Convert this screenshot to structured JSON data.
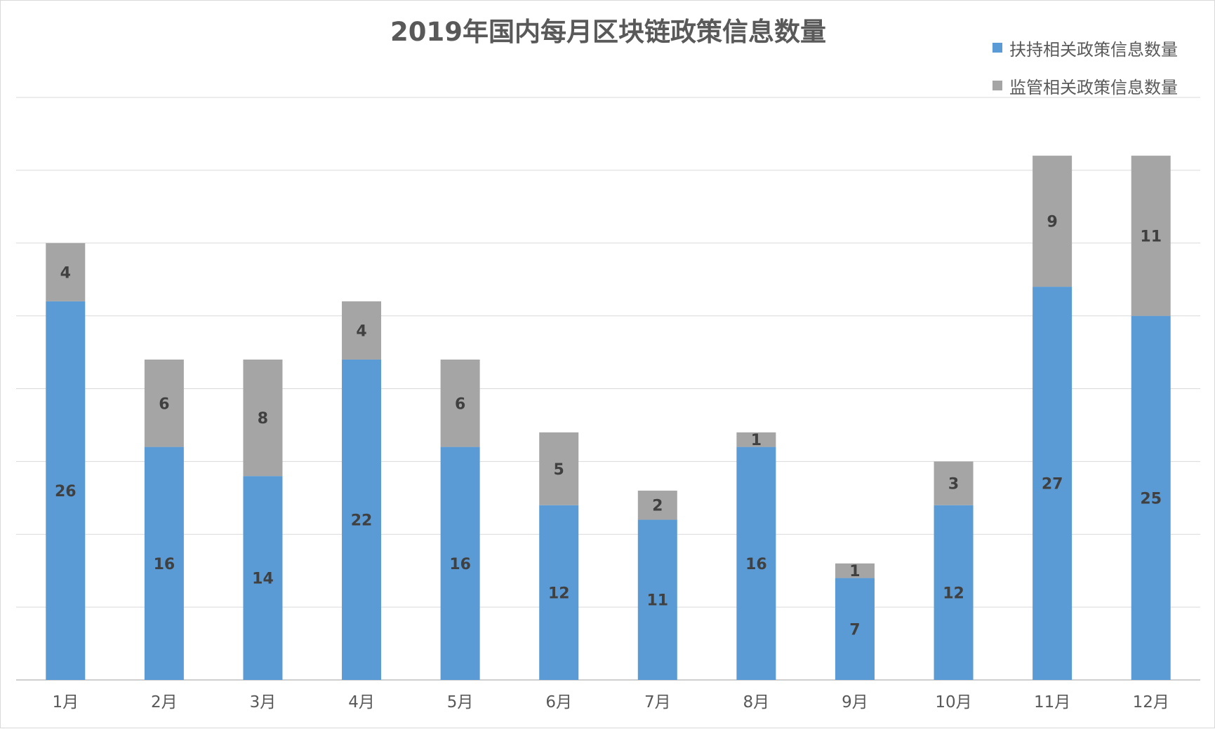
{
  "chart_data": {
    "type": "bar",
    "stacked": true,
    "title": "2019年国内每月区块链政策信息数量",
    "categories": [
      "1月",
      "2月",
      "3月",
      "4月",
      "5月",
      "6月",
      "7月",
      "8月",
      "9月",
      "10月",
      "11月",
      "12月"
    ],
    "series": [
      {
        "name": "扶持相关政策信息数量",
        "color": "#5b9bd5",
        "values": [
          26,
          16,
          14,
          22,
          16,
          12,
          11,
          16,
          7,
          12,
          27,
          25
        ]
      },
      {
        "name": "监管相关政策信息数量",
        "color": "#a5a5a5",
        "values": [
          4,
          6,
          8,
          4,
          6,
          5,
          2,
          1,
          1,
          3,
          9,
          11
        ]
      }
    ],
    "ylim": [
      0,
      40
    ],
    "gridlines": true,
    "legend_position": "top-right",
    "xlabel": "",
    "ylabel": ""
  }
}
